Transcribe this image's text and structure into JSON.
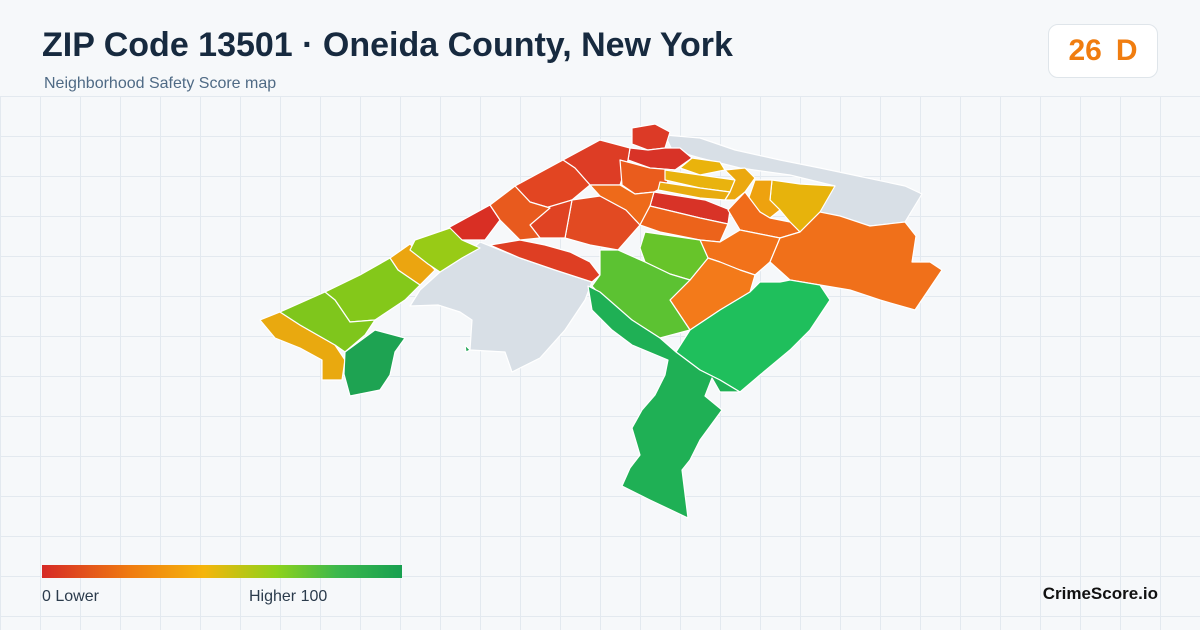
{
  "header": {
    "title": "ZIP Code 13501 · Oneida County, New York",
    "subtitle": "Neighborhood Safety Score map"
  },
  "score": {
    "value": "26",
    "grade": "D",
    "color": "#f07d10"
  },
  "legend": {
    "low_label": "0  Lower",
    "high_label": "Higher  100",
    "scale_colors": [
      "#d62a26",
      "#f07d10",
      "#f5b50c",
      "#8ed21b",
      "#3cb84c",
      "#18a050"
    ]
  },
  "map": {
    "no_data_color": "#d8dfe6",
    "border_color": "#ffffff"
  },
  "brand": "CrimeScore.io"
}
